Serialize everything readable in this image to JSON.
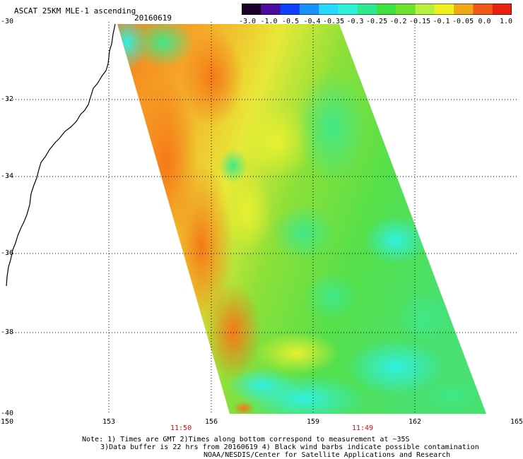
{
  "header": {
    "product_title": "ASCAT 25KM MLE-1 ascending",
    "date": "20160619"
  },
  "colorbar": {
    "labels": [
      "-3.0",
      "-1.0",
      "-0.5",
      "-0.4",
      "-0.35",
      "-0.3",
      "-0.25",
      "-0.2",
      "-0.15",
      "-0.1",
      "-0.05",
      "0.0",
      "1.0"
    ],
    "colors": [
      "#1a0028",
      "#4b0aa0",
      "#1040ff",
      "#1a90ff",
      "#28d8ff",
      "#2ff0d8",
      "#30e890",
      "#40e040",
      "#70e030",
      "#b8f040",
      "#f0f020",
      "#f0a818",
      "#f05818",
      "#e82010"
    ]
  },
  "map": {
    "lat_labels": [
      "-30",
      "-32",
      "-34",
      "-36",
      "-38",
      "-40"
    ],
    "lon_labels": [
      "150",
      "153",
      "156",
      "159",
      "162",
      "165"
    ],
    "pass_times": [
      "11:50",
      "11:49"
    ],
    "pass_time_color": "#d01010",
    "swath_palette": {
      "low": "#30f0e0",
      "mid_low": "#40e888",
      "mid": "#6ee038",
      "mid_high": "#e0f030",
      "high": "#f5b020",
      "highest": "#f57818"
    }
  },
  "footer": {
    "note_line_1": "Note: 1) Times are GMT 2)Times along bottom correspond to measurement at ~35S",
    "note_line_2": "3)Data buffer is 22 hrs from 20160619 4) Black wind barbs indicate possible contamination",
    "note_line_3": "NOAA/NESDIS/Center for Satellite Applications and Research"
  }
}
